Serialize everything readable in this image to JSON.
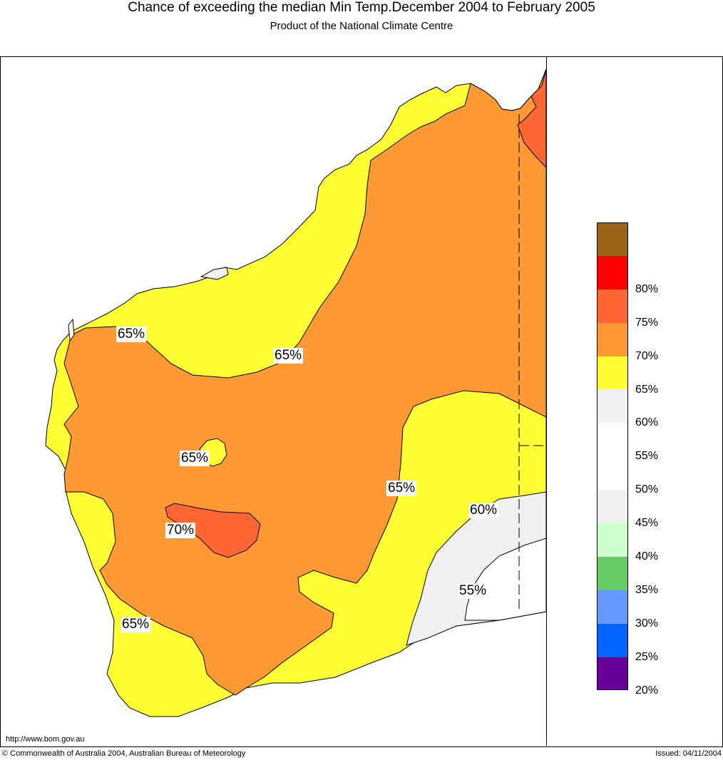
{
  "header": {
    "title": "Chance of exceeding the median Min Temp.December 2004 to February 2005",
    "subtitle": "Product of the National Climate Centre"
  },
  "legend": {
    "items": [
      {
        "label": "",
        "color": "#9c6418"
      },
      {
        "label": "80%",
        "color": "#ff0000"
      },
      {
        "label": "75%",
        "color": "#ff6633"
      },
      {
        "label": "70%",
        "color": "#ff9933"
      },
      {
        "label": "65%",
        "color": "#ffff33"
      },
      {
        "label": "60%",
        "color": "#f0f0f0"
      },
      {
        "label": "55%",
        "color": "#ffffff"
      },
      {
        "label": "50%",
        "color": "#ffffff"
      },
      {
        "label": "45%",
        "color": "#f0f0f0"
      },
      {
        "label": "40%",
        "color": "#ccffcc"
      },
      {
        "label": "35%",
        "color": "#66cc66"
      },
      {
        "label": "30%",
        "color": "#6699ff"
      },
      {
        "label": "25%",
        "color": "#0066ff"
      },
      {
        "label": "20%",
        "color": "#660099"
      }
    ]
  },
  "map": {
    "contour_labels": [
      "65%",
      "65%",
      "65%",
      "65%",
      "70%",
      "60%",
      "55%",
      "65%"
    ],
    "colors": {
      "zone_70": "#ff6633",
      "zone_65": "#ff9933",
      "zone_60": "#ffff33",
      "zone_55": "#f0f0f0",
      "zone_50": "#ffffff"
    }
  },
  "footer": {
    "url": "http://www.bom.gov.au",
    "copyright": "© Commonwealth of Australia 2004, Australian Bureau of Meteorology",
    "issued": "Issued: 04/11/2004"
  }
}
